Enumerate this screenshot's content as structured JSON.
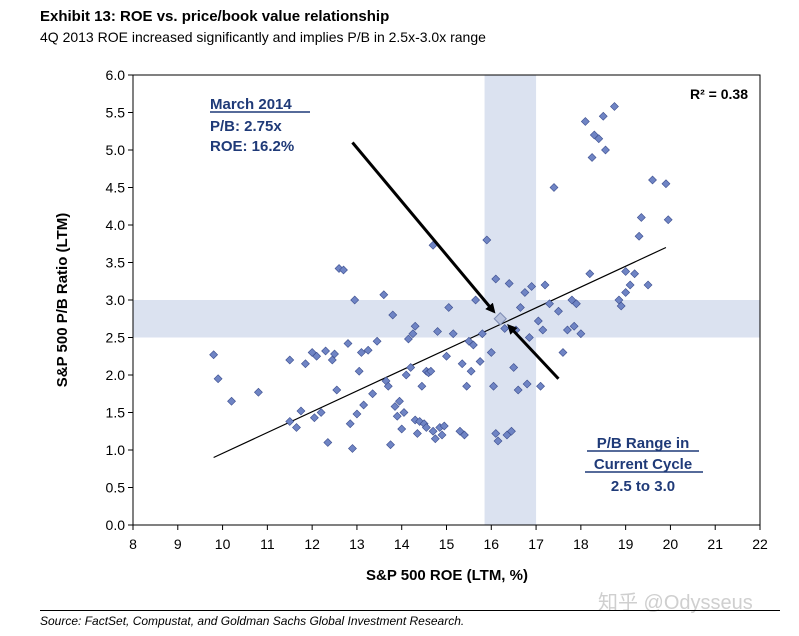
{
  "header": {
    "title": "Exhibit 13: ROE vs. price/book value relationship",
    "subtitle": "4Q 2013 ROE increased significantly and implies P/B in 2.5x-3.0x range"
  },
  "footer": {
    "source": "Source: FactSet, Compustat, and Goldman Sachs Global Investment Research.",
    "watermark": "知乎 @Odysseus"
  },
  "chart_data": {
    "type": "scatter",
    "xlabel": "S&P 500 ROE (LTM, %)",
    "ylabel": "S&P 500 P/B Ratio (LTM)",
    "xlim": [
      8,
      22
    ],
    "ylim": [
      0,
      6
    ],
    "x_ticks": [
      "8",
      "9",
      "10",
      "11",
      "12",
      "13",
      "14",
      "15",
      "16",
      "17",
      "18",
      "19",
      "20",
      "21",
      "22"
    ],
    "y_ticks": [
      "0.0",
      "0.5",
      "1.0",
      "1.5",
      "2.0",
      "2.5",
      "3.0",
      "3.5",
      "4.0",
      "4.5",
      "5.0",
      "5.5",
      "6.0"
    ],
    "grid": false,
    "marker_color": "#6f84c4",
    "r_squared_label": "R² = 0.38",
    "trendline": {
      "x": [
        9.8,
        19.9
      ],
      "y": [
        0.9,
        3.7
      ]
    },
    "highlight_bands": {
      "color": "#dbe2f0",
      "roe_band": [
        15.85,
        17.0
      ],
      "pb_band": [
        2.5,
        3.0
      ]
    },
    "annotations": {
      "march_2014": {
        "heading": "March 2014",
        "pb": "P/B: 2.75x",
        "roe": "ROE: 16.2%",
        "point": {
          "x": 16.2,
          "y": 2.75
        }
      },
      "pb_range": {
        "line1": "P/B Range in",
        "line2": "Current Cycle",
        "value": "2.5 to 3.0"
      },
      "color": "#1f3a78"
    },
    "arrows": [
      {
        "from": {
          "x": 12.9,
          "y": 5.1
        },
        "to": {
          "x": 16.05,
          "y": 2.85
        }
      },
      {
        "from": {
          "x": 17.5,
          "y": 1.95
        },
        "to": {
          "x": 16.4,
          "y": 2.65
        }
      }
    ],
    "points": [
      [
        9.8,
        2.27
      ],
      [
        9.9,
        1.95
      ],
      [
        10.2,
        1.65
      ],
      [
        10.8,
        1.77
      ],
      [
        11.5,
        2.2
      ],
      [
        11.5,
        1.38
      ],
      [
        11.65,
        1.3
      ],
      [
        11.75,
        1.52
      ],
      [
        11.85,
        2.15
      ],
      [
        12.0,
        2.3
      ],
      [
        12.05,
        1.43
      ],
      [
        12.1,
        2.25
      ],
      [
        12.2,
        1.5
      ],
      [
        12.3,
        2.32
      ],
      [
        12.35,
        1.1
      ],
      [
        12.45,
        2.2
      ],
      [
        12.5,
        2.28
      ],
      [
        12.55,
        1.8
      ],
      [
        12.6,
        3.42
      ],
      [
        12.7,
        3.4
      ],
      [
        12.8,
        2.42
      ],
      [
        12.85,
        1.35
      ],
      [
        12.9,
        1.02
      ],
      [
        12.95,
        3.0
      ],
      [
        13.0,
        1.48
      ],
      [
        13.05,
        2.05
      ],
      [
        13.1,
        2.3
      ],
      [
        13.15,
        1.6
      ],
      [
        13.25,
        2.33
      ],
      [
        13.35,
        1.75
      ],
      [
        13.45,
        2.45
      ],
      [
        13.6,
        3.07
      ],
      [
        13.65,
        1.92
      ],
      [
        13.7,
        1.85
      ],
      [
        13.75,
        1.07
      ],
      [
        13.8,
        2.8
      ],
      [
        13.85,
        1.58
      ],
      [
        13.9,
        1.45
      ],
      [
        13.95,
        1.65
      ],
      [
        14.0,
        1.28
      ],
      [
        14.05,
        1.5
      ],
      [
        14.1,
        2.0
      ],
      [
        14.15,
        2.48
      ],
      [
        14.2,
        2.1
      ],
      [
        14.25,
        2.55
      ],
      [
        14.3,
        2.65
      ],
      [
        14.3,
        1.4
      ],
      [
        14.35,
        1.22
      ],
      [
        14.4,
        1.38
      ],
      [
        14.45,
        1.85
      ],
      [
        14.5,
        1.35
      ],
      [
        14.55,
        1.3
      ],
      [
        14.55,
        2.05
      ],
      [
        14.6,
        2.03
      ],
      [
        14.65,
        2.05
      ],
      [
        14.7,
        1.25
      ],
      [
        14.7,
        3.73
      ],
      [
        14.75,
        1.15
      ],
      [
        14.8,
        2.58
      ],
      [
        14.85,
        1.3
      ],
      [
        14.9,
        1.2
      ],
      [
        14.95,
        1.32
      ],
      [
        15.0,
        2.25
      ],
      [
        15.05,
        2.9
      ],
      [
        15.15,
        2.55
      ],
      [
        15.3,
        1.25
      ],
      [
        15.35,
        2.15
      ],
      [
        15.4,
        1.2
      ],
      [
        15.45,
        1.85
      ],
      [
        15.5,
        2.45
      ],
      [
        15.55,
        2.05
      ],
      [
        15.6,
        2.4
      ],
      [
        15.65,
        3.0
      ],
      [
        15.75,
        2.18
      ],
      [
        15.8,
        2.55
      ],
      [
        15.9,
        3.8
      ],
      [
        16.0,
        2.3
      ],
      [
        16.05,
        1.85
      ],
      [
        16.1,
        1.22
      ],
      [
        16.1,
        3.28
      ],
      [
        16.15,
        1.12
      ],
      [
        16.2,
        2.75
      ],
      [
        16.3,
        2.62
      ],
      [
        16.35,
        1.2
      ],
      [
        16.4,
        3.22
      ],
      [
        16.45,
        1.25
      ],
      [
        16.5,
        2.1
      ],
      [
        16.55,
        2.6
      ],
      [
        16.6,
        1.8
      ],
      [
        16.65,
        2.9
      ],
      [
        16.75,
        3.1
      ],
      [
        16.8,
        1.88
      ],
      [
        16.85,
        2.5
      ],
      [
        16.9,
        3.18
      ],
      [
        17.05,
        2.72
      ],
      [
        17.1,
        1.85
      ],
      [
        17.15,
        2.6
      ],
      [
        17.2,
        3.2
      ],
      [
        17.3,
        2.95
      ],
      [
        17.4,
        4.5
      ],
      [
        17.5,
        2.85
      ],
      [
        17.6,
        2.3
      ],
      [
        17.7,
        2.6
      ],
      [
        17.8,
        3.0
      ],
      [
        17.85,
        2.65
      ],
      [
        17.9,
        2.95
      ],
      [
        18.0,
        2.55
      ],
      [
        18.1,
        5.38
      ],
      [
        18.2,
        3.35
      ],
      [
        18.25,
        4.9
      ],
      [
        18.3,
        5.2
      ],
      [
        18.4,
        5.15
      ],
      [
        18.5,
        5.45
      ],
      [
        18.55,
        5.0
      ],
      [
        18.75,
        5.58
      ],
      [
        18.85,
        3.0
      ],
      [
        18.9,
        2.92
      ],
      [
        19.0,
        3.1
      ],
      [
        19.0,
        3.38
      ],
      [
        19.1,
        3.2
      ],
      [
        19.2,
        3.35
      ],
      [
        19.3,
        3.85
      ],
      [
        19.35,
        4.1
      ],
      [
        19.5,
        3.2
      ],
      [
        19.6,
        4.6
      ],
      [
        19.9,
        4.55
      ],
      [
        19.95,
        4.07
      ]
    ]
  }
}
